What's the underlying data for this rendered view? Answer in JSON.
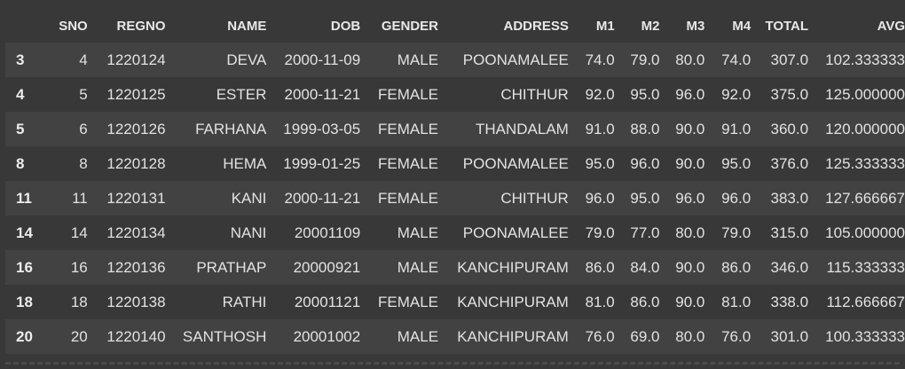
{
  "table": {
    "columns": [
      "SNO",
      "REGNO",
      "NAME",
      "DOB",
      "GENDER",
      "ADDRESS",
      "M1",
      "M2",
      "M3",
      "M4",
      "TOTAL",
      "AVG"
    ],
    "rows": [
      {
        "index": "3",
        "cells": [
          "4",
          "1220124",
          "DEVA",
          "2000-11-09",
          "MALE",
          "POONAMALEE",
          "74.0",
          "79.0",
          "80.0",
          "74.0",
          "307.0",
          "102.333333"
        ]
      },
      {
        "index": "4",
        "cells": [
          "5",
          "1220125",
          "ESTER",
          "2000-11-21",
          "FEMALE",
          "CHITHUR",
          "92.0",
          "95.0",
          "96.0",
          "92.0",
          "375.0",
          "125.000000"
        ]
      },
      {
        "index": "5",
        "cells": [
          "6",
          "1220126",
          "FARHANA",
          "1999-03-05",
          "FEMALE",
          "THANDALAM",
          "91.0",
          "88.0",
          "90.0",
          "91.0",
          "360.0",
          "120.000000"
        ]
      },
      {
        "index": "8",
        "cells": [
          "8",
          "1220128",
          "HEMA",
          "1999-01-25",
          "FEMALE",
          "POONAMALEE",
          "95.0",
          "96.0",
          "90.0",
          "95.0",
          "376.0",
          "125.333333"
        ]
      },
      {
        "index": "11",
        "cells": [
          "11",
          "1220131",
          "KANI",
          "2000-11-21",
          "FEMALE",
          "CHITHUR",
          "96.0",
          "95.0",
          "96.0",
          "96.0",
          "383.0",
          "127.666667"
        ]
      },
      {
        "index": "14",
        "cells": [
          "14",
          "1220134",
          "NANI",
          "20001109",
          "MALE",
          "POONAMALEE",
          "79.0",
          "77.0",
          "80.0",
          "79.0",
          "315.0",
          "105.000000"
        ]
      },
      {
        "index": "16",
        "cells": [
          "16",
          "1220136",
          "PRATHAP",
          "20000921",
          "MALE",
          "KANCHIPURAM",
          "86.0",
          "84.0",
          "90.0",
          "86.0",
          "346.0",
          "115.333333"
        ]
      },
      {
        "index": "18",
        "cells": [
          "18",
          "1220138",
          "RATHI",
          "20001121",
          "FEMALE",
          "KANCHIPURAM",
          "81.0",
          "86.0",
          "90.0",
          "81.0",
          "338.0",
          "112.666667"
        ]
      },
      {
        "index": "20",
        "cells": [
          "20",
          "1220140",
          "SANTHOSH",
          "20001002",
          "MALE",
          "KANCHIPURAM",
          "76.0",
          "69.0",
          "80.0",
          "76.0",
          "301.0",
          "100.333333"
        ]
      }
    ]
  },
  "colors": {
    "background": "#383838",
    "row_alt": "#424242",
    "text": "#e2e2e2"
  }
}
